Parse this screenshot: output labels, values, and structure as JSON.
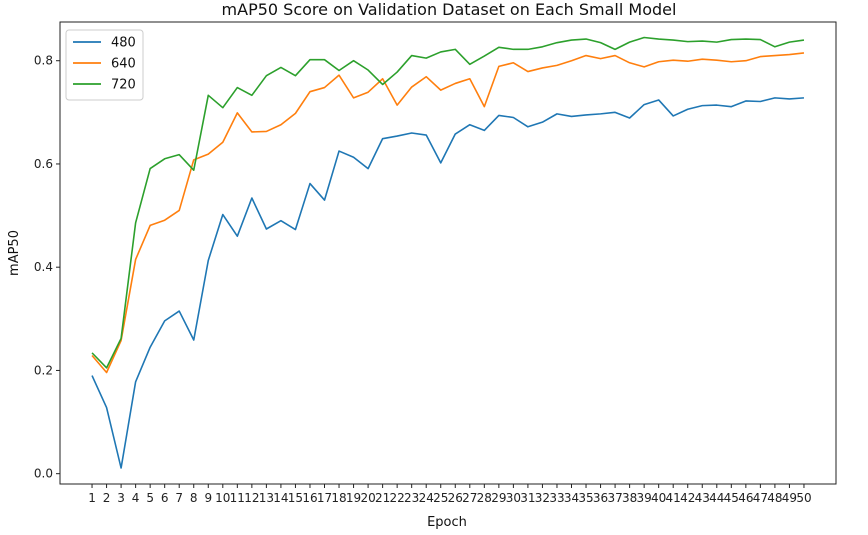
{
  "chart_data": {
    "type": "line",
    "title": "mAP50 Score on Validation Dataset on Each Small Model",
    "xlabel": "Epoch",
    "ylabel": "mAP50",
    "x": [
      1,
      2,
      3,
      4,
      5,
      6,
      7,
      8,
      9,
      10,
      11,
      12,
      13,
      14,
      15,
      16,
      17,
      18,
      19,
      20,
      21,
      22,
      23,
      24,
      25,
      26,
      27,
      28,
      29,
      30,
      31,
      32,
      33,
      34,
      35,
      36,
      37,
      38,
      39,
      40,
      41,
      42,
      43,
      44,
      45,
      46,
      47,
      48,
      49,
      50
    ],
    "xticks": [
      "1",
      "2",
      "3",
      "4",
      "5",
      "6",
      "7",
      "8",
      "9",
      "10",
      "11",
      "12",
      "13",
      "14",
      "15",
      "16",
      "17",
      "18",
      "19",
      "20",
      "21",
      "22",
      "23",
      "24",
      "25",
      "26",
      "27",
      "28",
      "29",
      "30",
      "31",
      "32",
      "33",
      "34",
      "35",
      "36",
      "37",
      "38",
      "39",
      "40",
      "41",
      "42",
      "43",
      "44",
      "45",
      "46",
      "47",
      "48",
      "49",
      "50"
    ],
    "ylim": [
      -0.02,
      0.875
    ],
    "yticks": [
      "0.0",
      "0.2",
      "0.4",
      "0.6",
      "0.8"
    ],
    "ytick_values": [
      0.0,
      0.2,
      0.4,
      0.6,
      0.8
    ],
    "grid": false,
    "legend_position": "top-left",
    "series": [
      {
        "name": "480",
        "color": "#1f77b4",
        "values": [
          0.19,
          0.128,
          0.011,
          0.178,
          0.245,
          0.296,
          0.315,
          0.259,
          0.413,
          0.502,
          0.46,
          0.534,
          0.474,
          0.49,
          0.473,
          0.562,
          0.53,
          0.625,
          0.613,
          0.591,
          0.649,
          0.654,
          0.66,
          0.656,
          0.602,
          0.658,
          0.676,
          0.665,
          0.694,
          0.69,
          0.672,
          0.681,
          0.697,
          0.692,
          0.695,
          0.697,
          0.7,
          0.689,
          0.715,
          0.724,
          0.693,
          0.706,
          0.713,
          0.714,
          0.711,
          0.722,
          0.721,
          0.728,
          0.726,
          0.728
        ]
      },
      {
        "name": "640",
        "color": "#ff7f0e",
        "values": [
          0.229,
          0.196,
          0.258,
          0.415,
          0.481,
          0.491,
          0.51,
          0.608,
          0.619,
          0.642,
          0.699,
          0.662,
          0.663,
          0.676,
          0.698,
          0.74,
          0.748,
          0.772,
          0.728,
          0.739,
          0.765,
          0.714,
          0.749,
          0.769,
          0.743,
          0.756,
          0.765,
          0.711,
          0.789,
          0.796,
          0.779,
          0.786,
          0.791,
          0.8,
          0.81,
          0.804,
          0.81,
          0.796,
          0.788,
          0.798,
          0.801,
          0.799,
          0.803,
          0.801,
          0.798,
          0.8,
          0.808,
          0.81,
          0.812,
          0.815
        ]
      },
      {
        "name": "720",
        "color": "#2ca02c",
        "values": [
          0.234,
          0.205,
          0.262,
          0.486,
          0.591,
          0.61,
          0.618,
          0.588,
          0.733,
          0.709,
          0.748,
          0.733,
          0.771,
          0.787,
          0.771,
          0.802,
          0.802,
          0.781,
          0.8,
          0.782,
          0.754,
          0.778,
          0.81,
          0.805,
          0.817,
          0.822,
          0.793,
          0.809,
          0.826,
          0.822,
          0.822,
          0.827,
          0.835,
          0.84,
          0.842,
          0.835,
          0.822,
          0.836,
          0.845,
          0.842,
          0.84,
          0.837,
          0.838,
          0.836,
          0.841,
          0.842,
          0.841,
          0.827,
          0.836,
          0.84
        ]
      }
    ]
  }
}
